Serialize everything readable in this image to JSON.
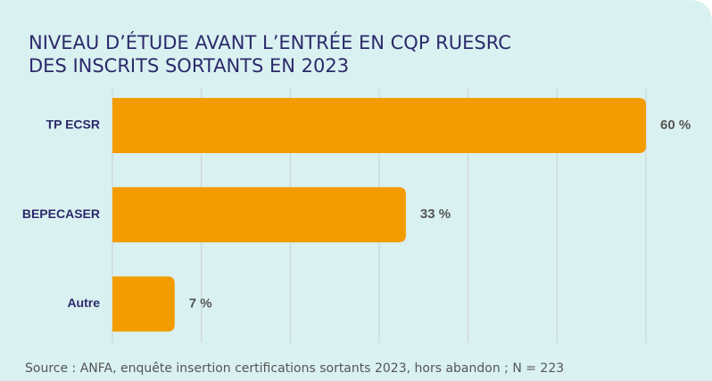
{
  "chart_data": {
    "type": "barh",
    "title": [
      "NIVEAU D’ÉTUDE AVANT L’ENTRÉE EN CQP RUESRC",
      "DES INSCRITS SORTANTS EN 2023"
    ],
    "categories": [
      "TP ECSR",
      "BEPECASER",
      "Autre"
    ],
    "values": [
      60,
      33,
      7
    ],
    "value_labels": [
      "60 %",
      "33 %",
      "7 %"
    ],
    "color": "#f39c00",
    "xlim": [
      0,
      60
    ],
    "xticks": [
      0,
      10,
      20,
      30,
      40,
      50,
      60
    ],
    "grid": true,
    "source": "Source : ANFA, enquête insertion certifications sortants 2023, hors abandon ; N = 223"
  }
}
